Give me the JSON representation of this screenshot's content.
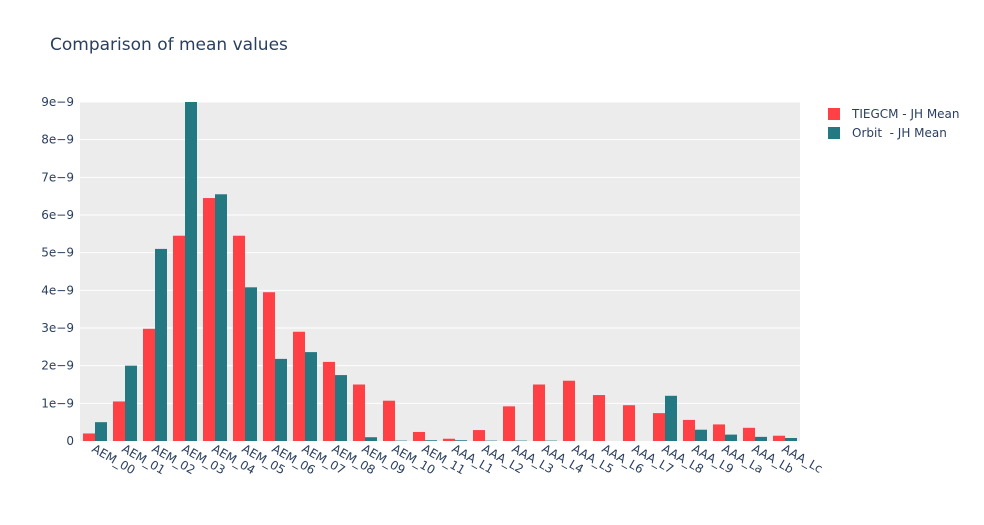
{
  "chart_data": {
    "type": "bar",
    "title": "Comparison of mean values",
    "xlabel": "",
    "ylabel": "",
    "ylim": [
      0,
      9e-09
    ],
    "yticks": [
      0,
      1e-09,
      2e-09,
      3e-09,
      4e-09,
      5e-09,
      6e-09,
      7e-09,
      8e-09,
      9e-09
    ],
    "ytick_labels": [
      "0",
      "1e−9",
      "2e−9",
      "3e−9",
      "4e−9",
      "5e−9",
      "6e−9",
      "7e−9",
      "8e−9",
      "9e−9"
    ],
    "grid": true,
    "legend_position": "top-right",
    "categories": [
      "AEM_00",
      "AEM_01",
      "AEM_02",
      "AEM_03",
      "AEM_04",
      "AEM_05",
      "AEM_06",
      "AEM_07",
      "AEM_08",
      "AEM_09",
      "AEM_10",
      "AEM_11",
      "AAA_L1",
      "AAA_L2",
      "AAA_L3",
      "AAA_L4",
      "AAA_L5",
      "AAA_L6",
      "AAA_L7",
      "AAA_L8",
      "AAA_L9",
      "AAA_La",
      "AAA_Lb",
      "AAA_Lc"
    ],
    "series": [
      {
        "name": "TIEGCM - JH Mean",
        "color": "#ff4045",
        "values": [
          2e-10,
          1.05e-09,
          2.98e-09,
          5.45e-09,
          6.45e-09,
          5.45e-09,
          3.95e-09,
          2.9e-09,
          2.1e-09,
          1.5e-09,
          1.07e-09,
          2.4e-10,
          6e-11,
          2.9e-10,
          9.2e-10,
          1.5e-09,
          1.6e-09,
          1.22e-09,
          9.5e-10,
          7.4e-10,
          5.6e-10,
          4.4e-10,
          3.5e-10,
          1.4e-10
        ]
      },
      {
        "name": "Orbit  - JH Mean",
        "color": "#237882",
        "values": [
          5e-10,
          2e-09,
          5.1e-09,
          9e-09,
          6.55e-09,
          4.08e-09,
          2.18e-09,
          2.36e-09,
          1.75e-09,
          1e-10,
          1e-11,
          2e-11,
          2e-11,
          1e-11,
          1e-11,
          1e-11,
          0,
          0,
          0,
          1.2e-09,
          3e-10,
          1.7e-10,
          1.1e-10,
          8e-11
        ]
      }
    ]
  }
}
